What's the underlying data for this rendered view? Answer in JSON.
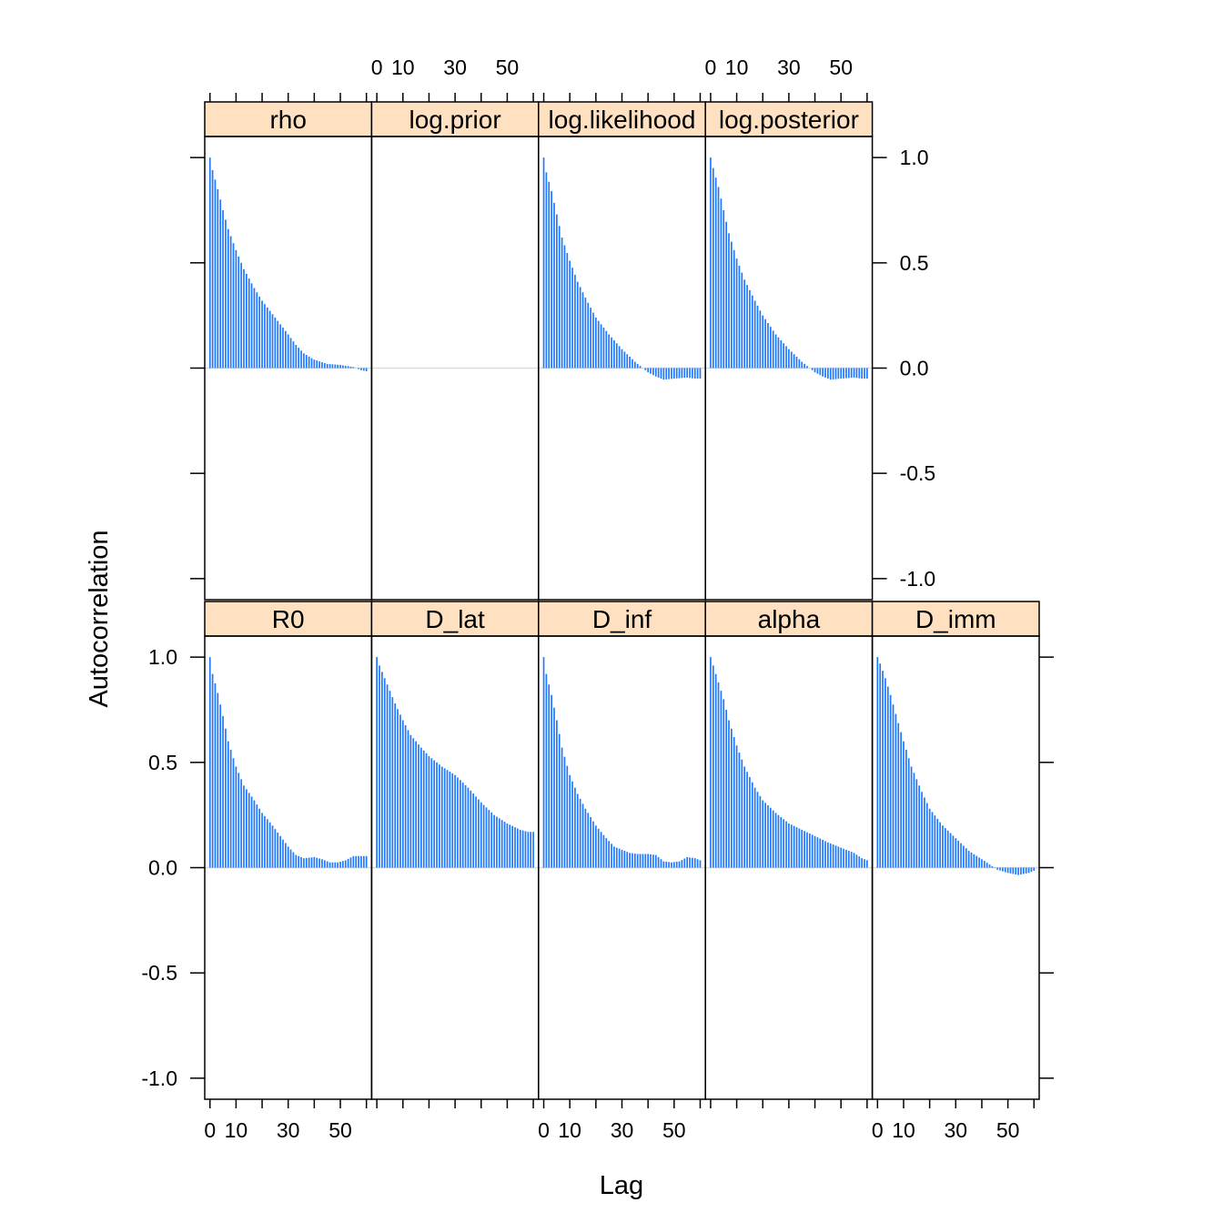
{
  "chart_data": {
    "type": "bar",
    "subtype": "autocorrelation trellis (lattice acfplot)",
    "xlabel": "Lag",
    "ylabel": "Autocorrelation",
    "xlim": [
      -2,
      62
    ],
    "ylim": [
      -1.1,
      1.1
    ],
    "x_ticks": [
      0,
      10,
      20,
      30,
      40,
      50,
      60
    ],
    "x_tick_labels": [
      "0",
      "10",
      "",
      "30",
      "",
      "50",
      ""
    ],
    "y_ticks": [
      -1.0,
      -0.5,
      0.0,
      0.5,
      1.0
    ],
    "y_tick_labels": [
      "-1.0",
      "-0.5",
      "0.0",
      "0.5",
      "1.0"
    ],
    "layout": {
      "columns": 5,
      "rows": 2
    },
    "bar_color": "#1f78ff",
    "strip_color": "#ffe0c0",
    "zero_line_color": "#d9d9d9",
    "panels": [
      {
        "name": "R0",
        "row": 0,
        "col": 0,
        "knots": [
          [
            0,
            1.0
          ],
          [
            1,
            0.92
          ],
          [
            3,
            0.83
          ],
          [
            5,
            0.72
          ],
          [
            7,
            0.6
          ],
          [
            10,
            0.48
          ],
          [
            13,
            0.39
          ],
          [
            17,
            0.32
          ],
          [
            20,
            0.26
          ],
          [
            24,
            0.2
          ],
          [
            27,
            0.15
          ],
          [
            30,
            0.1
          ],
          [
            33,
            0.06
          ],
          [
            36,
            0.045
          ],
          [
            40,
            0.05
          ],
          [
            43,
            0.04
          ],
          [
            46,
            0.025
          ],
          [
            49,
            0.025
          ],
          [
            52,
            0.035
          ],
          [
            55,
            0.055
          ],
          [
            60,
            0.055
          ]
        ]
      },
      {
        "name": "D_lat",
        "row": 0,
        "col": 1,
        "knots": [
          [
            0,
            1.0
          ],
          [
            1,
            0.96
          ],
          [
            3,
            0.9
          ],
          [
            5,
            0.84
          ],
          [
            7,
            0.78
          ],
          [
            10,
            0.7
          ],
          [
            13,
            0.63
          ],
          [
            17,
            0.57
          ],
          [
            20,
            0.53
          ],
          [
            25,
            0.48
          ],
          [
            30,
            0.44
          ],
          [
            35,
            0.38
          ],
          [
            40,
            0.31
          ],
          [
            45,
            0.25
          ],
          [
            50,
            0.21
          ],
          [
            55,
            0.18
          ],
          [
            58,
            0.17
          ],
          [
            60,
            0.17
          ]
        ]
      },
      {
        "name": "D_inf",
        "row": 0,
        "col": 2,
        "knots": [
          [
            0,
            1.0
          ],
          [
            1,
            0.92
          ],
          [
            3,
            0.82
          ],
          [
            5,
            0.7
          ],
          [
            7,
            0.57
          ],
          [
            10,
            0.44
          ],
          [
            13,
            0.35
          ],
          [
            16,
            0.28
          ],
          [
            20,
            0.2
          ],
          [
            24,
            0.14
          ],
          [
            27,
            0.1
          ],
          [
            30,
            0.085
          ],
          [
            33,
            0.07
          ],
          [
            36,
            0.065
          ],
          [
            40,
            0.065
          ],
          [
            43,
            0.06
          ],
          [
            46,
            0.03
          ],
          [
            49,
            0.025
          ],
          [
            52,
            0.03
          ],
          [
            55,
            0.05
          ],
          [
            58,
            0.045
          ],
          [
            60,
            0.035
          ]
        ]
      },
      {
        "name": "alpha",
        "row": 0,
        "col": 3,
        "knots": [
          [
            0,
            1.0
          ],
          [
            1,
            0.96
          ],
          [
            3,
            0.88
          ],
          [
            5,
            0.8
          ],
          [
            7,
            0.7
          ],
          [
            10,
            0.58
          ],
          [
            13,
            0.48
          ],
          [
            17,
            0.38
          ],
          [
            20,
            0.32
          ],
          [
            25,
            0.26
          ],
          [
            30,
            0.21
          ],
          [
            35,
            0.18
          ],
          [
            40,
            0.15
          ],
          [
            45,
            0.12
          ],
          [
            50,
            0.095
          ],
          [
            55,
            0.07
          ],
          [
            58,
            0.045
          ],
          [
            60,
            0.035
          ]
        ]
      },
      {
        "name": "D_imm",
        "row": 0,
        "col": 4,
        "knots": [
          [
            0,
            1.0
          ],
          [
            1,
            0.97
          ],
          [
            3,
            0.9
          ],
          [
            5,
            0.82
          ],
          [
            7,
            0.73
          ],
          [
            10,
            0.6
          ],
          [
            13,
            0.48
          ],
          [
            17,
            0.36
          ],
          [
            20,
            0.28
          ],
          [
            25,
            0.2
          ],
          [
            30,
            0.14
          ],
          [
            35,
            0.08
          ],
          [
            40,
            0.04
          ],
          [
            43,
            0.015
          ],
          [
            46,
            -0.01
          ],
          [
            50,
            -0.025
          ],
          [
            54,
            -0.035
          ],
          [
            58,
            -0.025
          ],
          [
            60,
            -0.015
          ]
        ]
      },
      {
        "name": "rho",
        "row": 1,
        "col": 0,
        "knots": [
          [
            0,
            1.0
          ],
          [
            1,
            0.94
          ],
          [
            3,
            0.85
          ],
          [
            5,
            0.75
          ],
          [
            7,
            0.66
          ],
          [
            10,
            0.56
          ],
          [
            13,
            0.47
          ],
          [
            17,
            0.38
          ],
          [
            20,
            0.32
          ],
          [
            25,
            0.24
          ],
          [
            30,
            0.16
          ],
          [
            33,
            0.11
          ],
          [
            36,
            0.07
          ],
          [
            40,
            0.04
          ],
          [
            45,
            0.02
          ],
          [
            50,
            0.015
          ],
          [
            55,
            0.005
          ],
          [
            58,
            -0.01
          ],
          [
            60,
            -0.015
          ]
        ]
      },
      {
        "name": "log.prior",
        "row": 1,
        "col": 1,
        "knots": []
      },
      {
        "name": "log.likelihood",
        "row": 1,
        "col": 2,
        "knots": [
          [
            0,
            1.0
          ],
          [
            1,
            0.93
          ],
          [
            3,
            0.84
          ],
          [
            5,
            0.73
          ],
          [
            7,
            0.62
          ],
          [
            10,
            0.51
          ],
          [
            13,
            0.41
          ],
          [
            17,
            0.31
          ],
          [
            20,
            0.24
          ],
          [
            25,
            0.16
          ],
          [
            30,
            0.09
          ],
          [
            35,
            0.03
          ],
          [
            38,
            0.0
          ],
          [
            40,
            -0.02
          ],
          [
            43,
            -0.04
          ],
          [
            46,
            -0.055
          ],
          [
            50,
            -0.05
          ],
          [
            55,
            -0.045
          ],
          [
            58,
            -0.05
          ],
          [
            60,
            -0.05
          ]
        ]
      },
      {
        "name": "log.posterior",
        "row": 1,
        "col": 3,
        "knots": [
          [
            0,
            1.0
          ],
          [
            1,
            0.95
          ],
          [
            3,
            0.86
          ],
          [
            5,
            0.75
          ],
          [
            7,
            0.64
          ],
          [
            10,
            0.52
          ],
          [
            13,
            0.42
          ],
          [
            17,
            0.32
          ],
          [
            20,
            0.25
          ],
          [
            25,
            0.16
          ],
          [
            30,
            0.09
          ],
          [
            35,
            0.03
          ],
          [
            38,
            0.0
          ],
          [
            40,
            -0.02
          ],
          [
            43,
            -0.04
          ],
          [
            46,
            -0.055
          ],
          [
            50,
            -0.05
          ],
          [
            55,
            -0.045
          ],
          [
            58,
            -0.05
          ],
          [
            60,
            -0.05
          ]
        ]
      }
    ]
  }
}
